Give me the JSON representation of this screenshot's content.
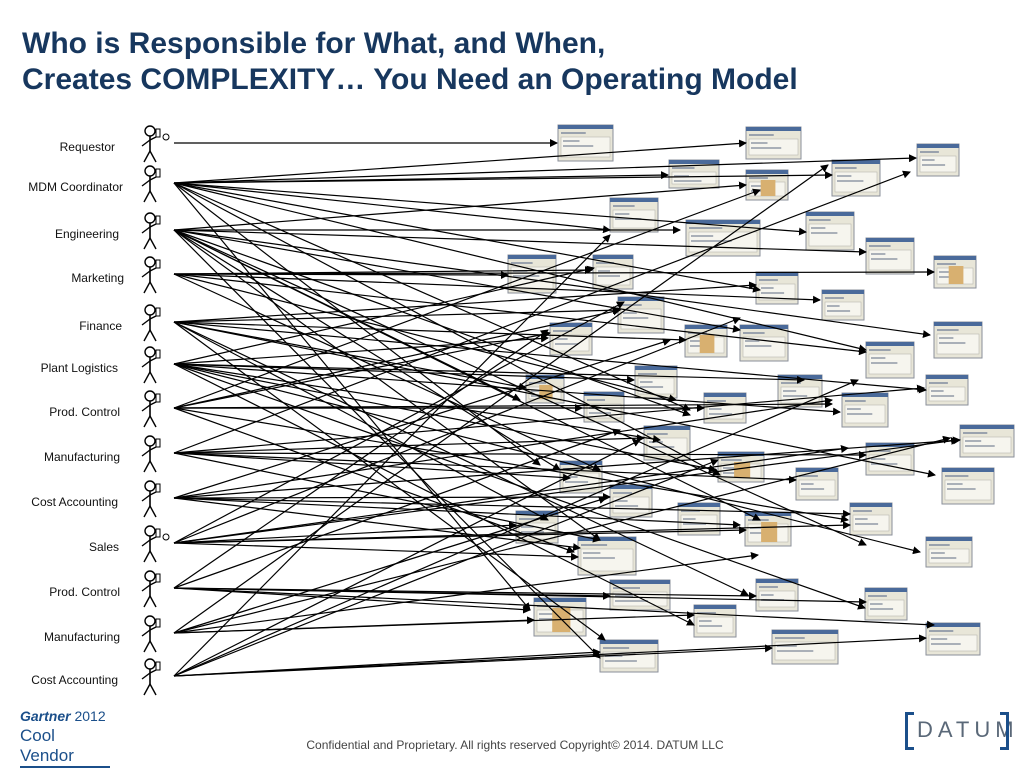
{
  "title": {
    "line1": "Who is Responsible for What, and When,",
    "line2": "Creates COMPLEXITY… You Need an Operating Model"
  },
  "roles": [
    "Requestor",
    "MDM Coordinator",
    "Engineering",
    "Marketing",
    "Finance",
    "Plant Logistics",
    "Prod. Control",
    "Manufacturing",
    "Cost Accounting",
    "Sales",
    "Prod. Control",
    "Manufacturing",
    "Cost Accounting"
  ],
  "footer": "Confidential and Proprietary. All rights reserved Copyright© 2014. DATUM LLC",
  "gartner_badge": {
    "brand": "Gartner",
    "year": "2012",
    "label": "Cool Vendor"
  },
  "logo": {
    "text": "DATUM"
  },
  "colors": {
    "title": "#17375E",
    "arrow": "#000000",
    "screen_header": "#4a6a9a",
    "screen_body": "#e8e6d8"
  }
}
